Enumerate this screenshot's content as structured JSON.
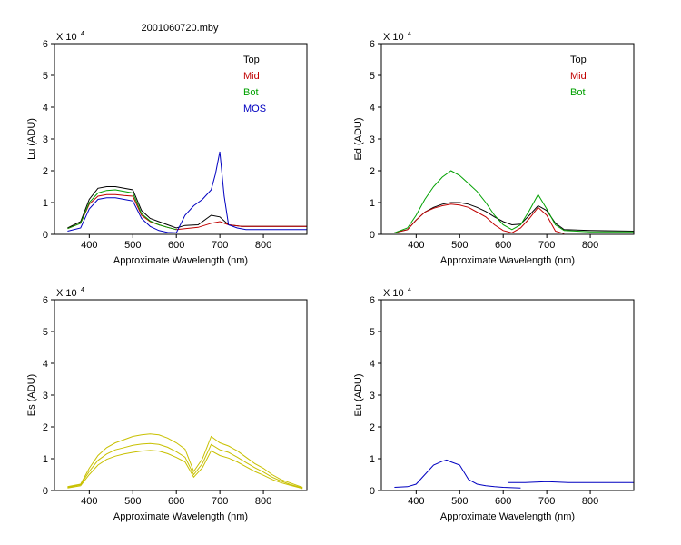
{
  "figure_title": "2001060720.mby",
  "chart_data": [
    {
      "type": "line",
      "ylabel": "Lu (ADU)",
      "xlabel": "Approximate Wavelength (nm)",
      "exponent_label": "X 10",
      "exponent_power": "4",
      "xlim": [
        320,
        900
      ],
      "ylim": [
        0,
        6
      ],
      "xticks": [
        400,
        500,
        600,
        700,
        800
      ],
      "yticks": [
        0,
        1,
        2,
        3,
        4,
        5,
        6
      ],
      "legend": [
        {
          "label": "Top",
          "color": "#000000"
        },
        {
          "label": "Mid",
          "color": "#c00000"
        },
        {
          "label": "Bot",
          "color": "#00a000"
        },
        {
          "label": "MOS",
          "color": "#0000c0"
        }
      ],
      "series": [
        {
          "name": "Top",
          "color": "#000000",
          "x": [
            350,
            380,
            400,
            420,
            440,
            460,
            480,
            500,
            520,
            540,
            560,
            580,
            600,
            620,
            650,
            680,
            700,
            720,
            750,
            800,
            900
          ],
          "y": [
            0.2,
            0.4,
            1.1,
            1.45,
            1.5,
            1.5,
            1.45,
            1.4,
            0.75,
            0.5,
            0.4,
            0.3,
            0.2,
            0.28,
            0.3,
            0.6,
            0.55,
            0.3,
            0.25,
            0.25,
            0.25
          ]
        },
        {
          "name": "Mid",
          "color": "#c00000",
          "x": [
            350,
            380,
            400,
            420,
            440,
            460,
            480,
            500,
            520,
            540,
            560,
            580,
            600,
            650,
            680,
            700,
            720,
            750,
            800,
            900
          ],
          "y": [
            0.18,
            0.35,
            0.95,
            1.2,
            1.25,
            1.25,
            1.22,
            1.2,
            0.6,
            0.4,
            0.3,
            0.22,
            0.15,
            0.22,
            0.35,
            0.4,
            0.3,
            0.25,
            0.25,
            0.25
          ]
        },
        {
          "name": "Bot",
          "color": "#00a000",
          "x": [
            350,
            380,
            400,
            420,
            440,
            460,
            480,
            500,
            520,
            540,
            560,
            580,
            600
          ],
          "y": [
            0.18,
            0.35,
            1.0,
            1.3,
            1.38,
            1.4,
            1.35,
            1.3,
            0.65,
            0.42,
            0.3,
            0.22,
            0.15
          ]
        },
        {
          "name": "MOS",
          "color": "#0000c0",
          "x": [
            350,
            380,
            400,
            420,
            440,
            460,
            480,
            500,
            520,
            540,
            560,
            580,
            600,
            620,
            640,
            660,
            680,
            690,
            700,
            710,
            720,
            740,
            760,
            800,
            900
          ],
          "y": [
            0.1,
            0.2,
            0.8,
            1.1,
            1.15,
            1.15,
            1.1,
            1.05,
            0.5,
            0.25,
            0.12,
            0.06,
            0.05,
            0.6,
            0.9,
            1.1,
            1.4,
            1.9,
            2.6,
            1.2,
            0.3,
            0.2,
            0.15,
            0.15,
            0.15
          ]
        }
      ]
    },
    {
      "type": "line",
      "ylabel": "Ed (ADU)",
      "xlabel": "Approximate Wavelength (nm)",
      "exponent_label": "X 10",
      "exponent_power": "4",
      "xlim": [
        320,
        900
      ],
      "ylim": [
        0,
        6
      ],
      "xticks": [
        400,
        500,
        600,
        700,
        800
      ],
      "yticks": [
        0,
        1,
        2,
        3,
        4,
        5,
        6
      ],
      "legend": [
        {
          "label": "Top",
          "color": "#000000"
        },
        {
          "label": "Mid",
          "color": "#c00000"
        },
        {
          "label": "Bot",
          "color": "#00a000"
        }
      ],
      "series": [
        {
          "name": "Top",
          "color": "#000000",
          "x": [
            350,
            380,
            400,
            420,
            440,
            460,
            480,
            500,
            520,
            540,
            560,
            580,
            600,
            620,
            640,
            660,
            680,
            700,
            720,
            740,
            800,
            900
          ],
          "y": [
            0.05,
            0.15,
            0.45,
            0.7,
            0.85,
            0.95,
            1.0,
            1.0,
            0.95,
            0.85,
            0.72,
            0.55,
            0.4,
            0.3,
            0.32,
            0.6,
            0.9,
            0.75,
            0.35,
            0.15,
            0.12,
            0.1
          ]
        },
        {
          "name": "Mid",
          "color": "#c00000",
          "x": [
            350,
            380,
            400,
            420,
            440,
            460,
            480,
            500,
            520,
            540,
            560,
            580,
            600,
            620,
            640,
            660,
            680,
            700,
            720,
            740
          ],
          "y": [
            0.05,
            0.15,
            0.45,
            0.7,
            0.82,
            0.9,
            0.95,
            0.92,
            0.85,
            0.7,
            0.55,
            0.3,
            0.12,
            0.05,
            0.2,
            0.5,
            0.85,
            0.6,
            0.1,
            0.02
          ]
        },
        {
          "name": "Bot",
          "color": "#00a000",
          "x": [
            350,
            380,
            400,
            420,
            440,
            460,
            480,
            500,
            520,
            540,
            560,
            580,
            600,
            620,
            640,
            660,
            680,
            700,
            720,
            740,
            800,
            900
          ],
          "y": [
            0.05,
            0.2,
            0.6,
            1.1,
            1.5,
            1.8,
            2.0,
            1.85,
            1.6,
            1.35,
            1.0,
            0.6,
            0.3,
            0.15,
            0.3,
            0.75,
            1.25,
            0.8,
            0.3,
            0.12,
            0.08,
            0.08
          ]
        }
      ]
    },
    {
      "type": "line",
      "ylabel": "Es (ADU)",
      "xlabel": "Approximate Wavelength (nm)",
      "exponent_label": "X 10",
      "exponent_power": "4",
      "xlim": [
        320,
        900
      ],
      "ylim": [
        0,
        6
      ],
      "xticks": [
        400,
        500,
        600,
        700,
        800
      ],
      "yticks": [
        0,
        1,
        2,
        3,
        4,
        5,
        6
      ],
      "legend": [],
      "series": [
        {
          "color": "#c8c000",
          "x": [
            350,
            380,
            400,
            420,
            440,
            460,
            480,
            500,
            520,
            540,
            560,
            580,
            600,
            620,
            640,
            660,
            680,
            700,
            720,
            740,
            760,
            780,
            800,
            820,
            840,
            860,
            880,
            890
          ],
          "y": [
            0.12,
            0.2,
            0.7,
            1.1,
            1.35,
            1.5,
            1.6,
            1.7,
            1.75,
            1.78,
            1.75,
            1.65,
            1.5,
            1.3,
            0.6,
            1.0,
            1.7,
            1.5,
            1.4,
            1.25,
            1.05,
            0.85,
            0.7,
            0.5,
            0.35,
            0.25,
            0.15,
            0.1
          ]
        },
        {
          "color": "#c8c000",
          "x": [
            350,
            380,
            400,
            420,
            440,
            460,
            480,
            500,
            520,
            540,
            560,
            580,
            600,
            620,
            640,
            660,
            680,
            700,
            720,
            740,
            760,
            780,
            800,
            820,
            840,
            860,
            880,
            890
          ],
          "y": [
            0.1,
            0.18,
            0.6,
            0.95,
            1.15,
            1.28,
            1.35,
            1.42,
            1.46,
            1.48,
            1.45,
            1.36,
            1.22,
            1.05,
            0.5,
            0.85,
            1.45,
            1.28,
            1.2,
            1.05,
            0.88,
            0.72,
            0.58,
            0.42,
            0.3,
            0.2,
            0.12,
            0.08
          ]
        },
        {
          "color": "#c8c000",
          "x": [
            350,
            380,
            400,
            420,
            440,
            460,
            480,
            500,
            520,
            540,
            560,
            580,
            600,
            620,
            640,
            660,
            680,
            700,
            720,
            740,
            760,
            780,
            800,
            820,
            840,
            860,
            880,
            890
          ],
          "y": [
            0.08,
            0.15,
            0.5,
            0.8,
            0.98,
            1.08,
            1.15,
            1.2,
            1.24,
            1.26,
            1.24,
            1.16,
            1.04,
            0.9,
            0.42,
            0.72,
            1.25,
            1.1,
            1.02,
            0.9,
            0.75,
            0.6,
            0.48,
            0.35,
            0.25,
            0.17,
            0.1,
            0.06
          ]
        }
      ]
    },
    {
      "type": "line",
      "ylabel": "Eu (ADU)",
      "xlabel": "Approximate Wavelength (nm)",
      "exponent_label": "X 10",
      "exponent_power": "4",
      "xlim": [
        320,
        900
      ],
      "ylim": [
        0,
        6
      ],
      "xticks": [
        400,
        500,
        600,
        700,
        800
      ],
      "yticks": [
        0,
        1,
        2,
        3,
        4,
        5,
        6
      ],
      "legend": [],
      "series": [
        {
          "color": "#0000c0",
          "x": [
            350,
            380,
            400,
            420,
            440,
            460,
            470,
            480,
            500,
            520,
            540,
            560,
            580,
            600,
            640
          ],
          "y": [
            0.1,
            0.12,
            0.2,
            0.5,
            0.8,
            0.92,
            0.96,
            0.9,
            0.8,
            0.35,
            0.2,
            0.15,
            0.12,
            0.1,
            0.08
          ]
        },
        {
          "color": "#0000c0",
          "x": [
            610,
            650,
            700,
            750,
            800,
            900
          ],
          "y": [
            0.25,
            0.25,
            0.28,
            0.25,
            0.25,
            0.25
          ]
        }
      ]
    }
  ]
}
